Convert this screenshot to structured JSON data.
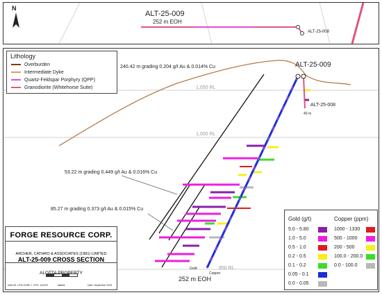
{
  "plan_view": {
    "north_label": "N",
    "hole_label": "ALT-25-009",
    "eoh_label": "252 m EOH",
    "hole_label_2": "ALT-25-008"
  },
  "section": {
    "hole_label": "ALT-25-009",
    "hole_label_2": "ALT-25-008",
    "depth_label_2": "40 m",
    "eoh_label": "252 m EOH",
    "rl_labels": [
      "1,050 RL",
      "1,000 RL",
      "850 RL"
    ],
    "gold_axis_label": "Gold",
    "copper_axis_label": "Copper",
    "intercepts": [
      "240.42 m grading 0.204 g/t Au & 0.014% Cu",
      "53.22 m grading 0.449 g/t Au & 0.016% Cu",
      "85.27 m grading 0.373 g/t Au & 0.015% Cu"
    ]
  },
  "lithology_legend": {
    "title": "Lithology",
    "items": [
      {
        "label": "Overburden",
        "color": "#7a3b10"
      },
      {
        "label": "Intermediate Dyke",
        "color": "#d9a05b"
      },
      {
        "label": "Quartz-Feldspar Porphyry (QPP)",
        "color": "#e84bd3"
      },
      {
        "label": "Granodiorite (Whitehorse Suite)",
        "color": "#e0557a"
      }
    ]
  },
  "assay_legend": {
    "gold_title": "Gold (g/t)",
    "copper_title": "Copper (ppm)",
    "gold": [
      {
        "label": "5.0 - 5.80",
        "color": "#8b1fa8"
      },
      {
        "label": "1.0 - 5.0",
        "color": "#ee1de0"
      },
      {
        "label": "0.5 - 1.0",
        "color": "#e01b1b"
      },
      {
        "label": "0.2 - 0.5",
        "color": "#f6ef1a"
      },
      {
        "label": "0.1 - 0.2",
        "color": "#3ddc2a"
      },
      {
        "label": "0.05 - 0.1",
        "color": "#1a2fd6"
      },
      {
        "label": "0.0 - 0.05",
        "color": "#b8b8b8"
      }
    ],
    "copper": [
      {
        "label": "1000 - 1330",
        "color": "#e01b1b"
      },
      {
        "label": "500 - 1000",
        "color": "#ee1de0"
      },
      {
        "label": "200 - 500",
        "color": "#f6ef1a"
      },
      {
        "label": "100.0 - 200.0",
        "color": "#3ddc2a"
      },
      {
        "label": "0.0 - 100.0",
        "color": "#b8b8b8"
      }
    ]
  },
  "title_block": {
    "company": "FORGE RESOURCE CORP.",
    "consultant": "ARCHER, CATHRO & ASSOCIATES (1981) LIMITED",
    "section_title": "ALT-25-009 CROSS SECTION",
    "property": "ALOTTA PROPERTY",
    "scale_unit": "metres",
    "projection": "NAD 83, UTM ZONE 7, NTS: 115J/07",
    "date": "Date: September 2025"
  }
}
